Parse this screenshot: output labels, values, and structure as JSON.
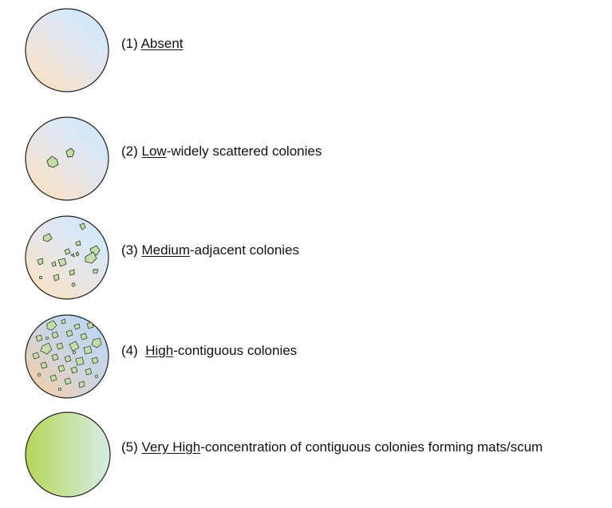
{
  "levels": [
    {
      "number": "(1)",
      "keyword": "Absent",
      "rest": "",
      "density": "absent"
    },
    {
      "number": "(2)",
      "keyword": "Low",
      "rest": "-widely scattered colonies",
      "density": "low"
    },
    {
      "number": "(3)",
      "keyword": "Medium",
      "rest": "-adjacent colonies",
      "density": "medium"
    },
    {
      "number": "(4)",
      "keyword": "High",
      "rest": "-contiguous colonies",
      "density": "high"
    },
    {
      "number": "(5)",
      "keyword": "Very High",
      "rest": "-concentration of contiguous colonies forming mats/scum",
      "density": "very-high"
    }
  ],
  "colors": {
    "disc_blue": "#d4e8fa",
    "disc_peach": "#f8e2c8",
    "colony_fill": "#c6dcaa",
    "colony_stroke": "#3a4a30",
    "scum_green": "#b6d656",
    "scum_light": "#d4ebe4",
    "outline": "#1f1f1f"
  }
}
